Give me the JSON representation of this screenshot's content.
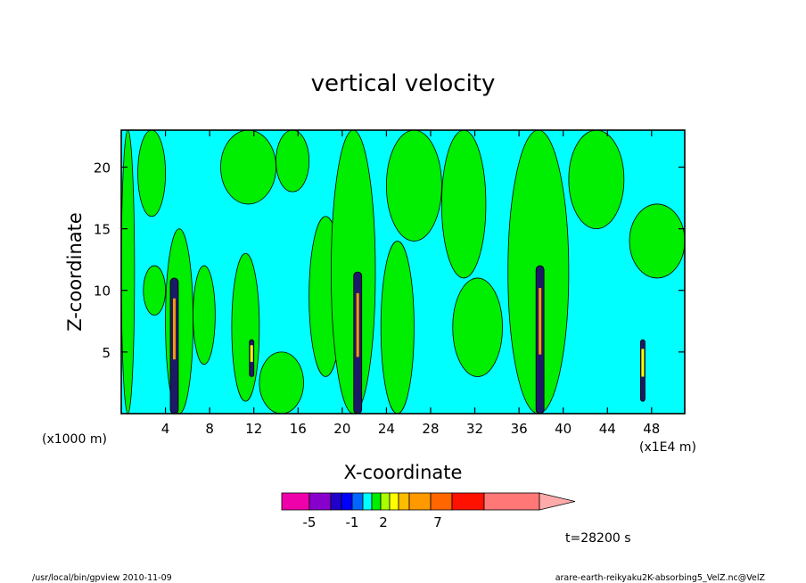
{
  "chart_data": {
    "type": "heatmap",
    "title": "vertical velocity",
    "xlabel": "X-coordinate",
    "ylabel": "Z-coordinate",
    "x_unit_left": "(x1000 m)",
    "x_unit_right": "(x1E4 m)",
    "xlim": [
      0,
      51
    ],
    "ylim": [
      0,
      23
    ],
    "x_ticks": [
      4,
      8,
      12,
      16,
      20,
      24,
      28,
      32,
      36,
      40,
      44,
      48
    ],
    "y_ticks": [
      5,
      10,
      15,
      20
    ],
    "background_level": "-1 to 0",
    "background_color": "#00ffff",
    "positive_regions": [
      {
        "x": [
          0,
          1.2
        ],
        "z": [
          0,
          23
        ]
      },
      {
        "x": [
          1.5,
          4
        ],
        "z": [
          16,
          23
        ]
      },
      {
        "x": [
          2,
          4
        ],
        "z": [
          8,
          12
        ]
      },
      {
        "x": [
          4,
          6.5
        ],
        "z": [
          0,
          15
        ]
      },
      {
        "x": [
          6.5,
          8.5
        ],
        "z": [
          4,
          12
        ]
      },
      {
        "x": [
          9,
          14
        ],
        "z": [
          17,
          23
        ]
      },
      {
        "x": [
          10,
          12.5
        ],
        "z": [
          1,
          13
        ]
      },
      {
        "x": [
          12.5,
          16.5
        ],
        "z": [
          0,
          5
        ]
      },
      {
        "x": [
          14,
          17
        ],
        "z": [
          18,
          23
        ]
      },
      {
        "x": [
          17,
          20
        ],
        "z": [
          3,
          16
        ]
      },
      {
        "x": [
          19,
          23
        ],
        "z": [
          0,
          23
        ]
      },
      {
        "x": [
          23.5,
          26.5
        ],
        "z": [
          0,
          14
        ]
      },
      {
        "x": [
          24,
          29
        ],
        "z": [
          14,
          23
        ]
      },
      {
        "x": [
          29,
          33
        ],
        "z": [
          11,
          23
        ]
      },
      {
        "x": [
          30,
          34.5
        ],
        "z": [
          3,
          11
        ]
      },
      {
        "x": [
          35,
          40.5
        ],
        "z": [
          0,
          23
        ]
      },
      {
        "x": [
          40.5,
          45.5
        ],
        "z": [
          15,
          23
        ]
      },
      {
        "x": [
          46,
          51
        ],
        "z": [
          11,
          17
        ]
      }
    ],
    "updraft_cores": [
      {
        "x": 4.8,
        "z": [
          0,
          11
        ],
        "peak": 7
      },
      {
        "x": 11.8,
        "z": [
          3,
          6
        ],
        "peak": 2
      },
      {
        "x": 21.4,
        "z": [
          0,
          11.5
        ],
        "peak": 7
      },
      {
        "x": 37.9,
        "z": [
          0,
          12
        ],
        "peak": 7
      },
      {
        "x": 47.2,
        "z": [
          1,
          6
        ],
        "peak": 2
      }
    ],
    "colorbar": {
      "labels": [
        "-5",
        "-1",
        "2",
        "7"
      ],
      "colors": [
        "#ee00aa",
        "#8800cc",
        "#2200cc",
        "#0000ff",
        "#0066ff",
        "#00ffff",
        "#00ee00",
        "#aaff00",
        "#ffff00",
        "#ffbb00",
        "#ff9900",
        "#ff6600",
        "#ff1100",
        "#ff7777",
        "#ffaaaa"
      ]
    },
    "time_label": "t=28200 s"
  },
  "footer": {
    "left": "/usr/local/bin/gpview  2010-11-09",
    "right": "arare-earth-reikyaku2K-absorbing5_VelZ.nc@VelZ"
  }
}
